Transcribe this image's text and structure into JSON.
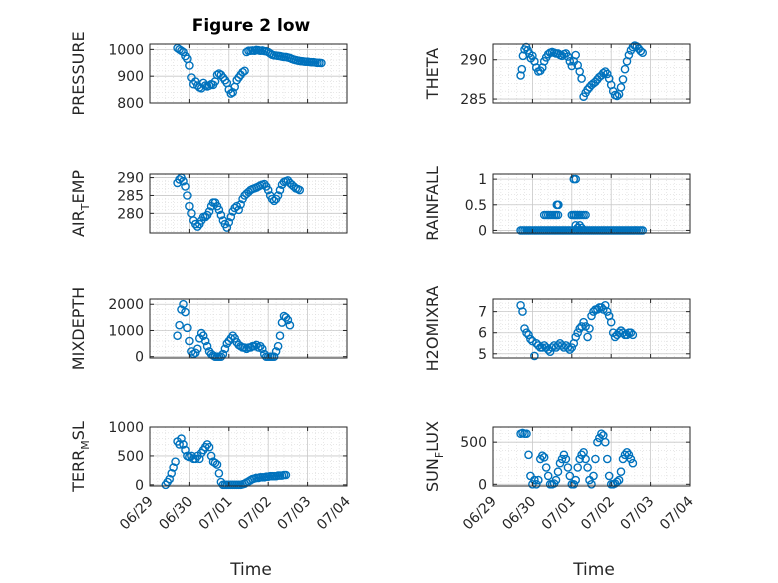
{
  "title": "Figure 2 low",
  "x_axis_label": "Time",
  "x_tick_labels": [
    "06/29",
    "06/30",
    "07/01",
    "07/02",
    "07/03",
    "07/04"
  ],
  "chart_data": [
    {
      "type": "scatter",
      "ylabel": "PRESSURE",
      "ylim": [
        800,
        1020
      ],
      "yticks": [
        800,
        900,
        1000
      ],
      "x": [
        0.7,
        0.75,
        0.8,
        0.85,
        0.9,
        0.95,
        1.0,
        1.05,
        1.1,
        1.15,
        1.2,
        1.25,
        1.3,
        1.35,
        1.4,
        1.45,
        1.5,
        1.55,
        1.6,
        1.65,
        1.7,
        1.75,
        1.8,
        1.85,
        1.9,
        1.95,
        2.0,
        2.05,
        2.1,
        2.15,
        2.2,
        2.25,
        2.3,
        2.35,
        2.4,
        2.45,
        2.5,
        2.55,
        2.6,
        2.65,
        2.7,
        2.75,
        2.8,
        2.85,
        2.9,
        2.95,
        3.0,
        3.05,
        3.1,
        3.15,
        3.2,
        3.25,
        3.3,
        3.35,
        3.4,
        3.45,
        3.5,
        3.55,
        3.6,
        3.65,
        3.7,
        3.75,
        3.8,
        3.85,
        3.9,
        3.95,
        4.0,
        4.05,
        4.1,
        4.15,
        4.2,
        4.25,
        4.3,
        4.35
      ],
      "y": [
        1005,
        1000,
        995,
        990,
        975,
        965,
        940,
        895,
        870,
        880,
        865,
        858,
        855,
        875,
        865,
        862,
        865,
        870,
        868,
        880,
        905,
        910,
        905,
        895,
        885,
        875,
        850,
        835,
        840,
        860,
        885,
        895,
        905,
        915,
        920,
        990,
        995,
        995,
        996,
        995,
        998,
        997,
        995,
        996,
        994,
        993,
        990,
        985,
        980,
        978,
        977,
        976,
        975,
        973,
        972,
        972,
        970,
        968,
        965,
        962,
        960,
        958,
        957,
        956,
        955,
        954,
        954,
        953,
        952,
        952,
        951,
        950,
        950,
        949
      ]
    },
    {
      "type": "scatter",
      "ylabel": "THETA",
      "ylim": [
        284.5,
        292
      ],
      "yticks": [
        285,
        290
      ],
      "x": [
        0.7,
        0.73,
        0.76,
        0.8,
        0.84,
        0.88,
        0.92,
        0.96,
        1.0,
        1.05,
        1.1,
        1.15,
        1.2,
        1.25,
        1.3,
        1.35,
        1.4,
        1.45,
        1.5,
        1.55,
        1.6,
        1.65,
        1.7,
        1.75,
        1.8,
        1.85,
        1.9,
        1.95,
        2.0,
        2.05,
        2.1,
        2.15,
        2.2,
        2.25,
        2.3,
        2.35,
        2.4,
        2.45,
        2.5,
        2.55,
        2.6,
        2.65,
        2.7,
        2.75,
        2.8,
        2.85,
        2.9,
        2.95,
        3.0,
        3.05,
        3.1,
        3.15,
        3.2,
        3.25,
        3.3,
        3.35,
        3.4,
        3.45,
        3.5,
        3.55,
        3.6,
        3.65,
        3.7,
        3.75,
        3.8
      ],
      "y": [
        288.0,
        288.8,
        290.5,
        291.3,
        291.6,
        291.2,
        290.8,
        290.2,
        290.5,
        289.8,
        289.0,
        288.5,
        288.6,
        289.0,
        289.8,
        290.3,
        290.7,
        290.9,
        291.0,
        290.9,
        290.8,
        290.8,
        290.6,
        290.5,
        290.7,
        290.8,
        290.4,
        289.8,
        289.2,
        289.8,
        290.6,
        289.3,
        288.5,
        287.6,
        285.3,
        285.8,
        286.2,
        286.5,
        286.8,
        287.0,
        287.2,
        287.5,
        287.8,
        288.0,
        288.3,
        288.5,
        288.2,
        287.6,
        286.8,
        286.0,
        285.5,
        285.4,
        285.6,
        286.5,
        287.5,
        288.8,
        289.8,
        290.6,
        291.2,
        291.6,
        291.8,
        291.7,
        291.4,
        291.1,
        290.9
      ]
    },
    {
      "type": "scatter",
      "ylabel": "AIR_TEMP",
      "ylim": [
        274.5,
        291
      ],
      "yticks": [
        280,
        285,
        290
      ],
      "x": [
        0.7,
        0.75,
        0.8,
        0.85,
        0.9,
        0.95,
        1.0,
        1.05,
        1.1,
        1.15,
        1.2,
        1.25,
        1.3,
        1.35,
        1.4,
        1.45,
        1.5,
        1.55,
        1.6,
        1.65,
        1.7,
        1.75,
        1.8,
        1.85,
        1.9,
        1.95,
        2.0,
        2.05,
        2.1,
        2.15,
        2.2,
        2.25,
        2.3,
        2.35,
        2.4,
        2.45,
        2.5,
        2.55,
        2.6,
        2.65,
        2.7,
        2.75,
        2.8,
        2.85,
        2.9,
        2.95,
        3.0,
        3.05,
        3.1,
        3.15,
        3.2,
        3.25,
        3.3,
        3.35,
        3.4,
        3.45,
        3.5,
        3.55,
        3.6,
        3.65,
        3.7,
        3.75,
        3.8
      ],
      "y": [
        288.5,
        289.5,
        290.0,
        289.0,
        287.5,
        285.0,
        282.0,
        280.0,
        278.0,
        277.0,
        276.3,
        277.0,
        278.0,
        279.0,
        279.0,
        279.5,
        280.5,
        282.0,
        283.0,
        283.0,
        282.0,
        281.0,
        279.5,
        278.0,
        277.0,
        276.0,
        277.5,
        279.0,
        280.5,
        281.5,
        282.0,
        281.0,
        282.5,
        284.0,
        285.0,
        285.5,
        286.0,
        286.5,
        286.8,
        287.0,
        287.2,
        287.5,
        287.8,
        288.0,
        288.2,
        287.5,
        286.5,
        285.0,
        284.0,
        283.5,
        284.0,
        285.0,
        286.5,
        288.0,
        288.8,
        289.0,
        289.2,
        288.5,
        288.0,
        287.5,
        287.0,
        286.8,
        286.5
      ]
    },
    {
      "type": "scatter",
      "ylabel": "RAINFALL",
      "ylim": [
        -0.05,
        1.1
      ],
      "yticks": [
        0,
        0.5,
        1
      ],
      "x": [
        0.7,
        0.75,
        0.8,
        0.85,
        0.9,
        0.95,
        1.0,
        1.05,
        1.1,
        1.15,
        1.2,
        1.25,
        1.3,
        1.35,
        1.4,
        1.45,
        1.5,
        1.55,
        1.6,
        1.65,
        1.7,
        1.75,
        1.8,
        1.85,
        1.9,
        1.95,
        2.0,
        2.05,
        2.1,
        2.15,
        2.2,
        2.25,
        2.3,
        2.35,
        2.4,
        2.45,
        2.5,
        2.55,
        2.6,
        2.65,
        2.7,
        2.75,
        2.8,
        2.85,
        2.9,
        2.95,
        3.0,
        3.05,
        3.1,
        3.15,
        3.2,
        3.25,
        3.3,
        3.35,
        3.4,
        3.45,
        3.5,
        3.55,
        3.6,
        3.65,
        3.7,
        3.75,
        3.8,
        1.3,
        1.35,
        1.4,
        1.45,
        1.5,
        1.55,
        1.6,
        1.65,
        2.05,
        2.1,
        2.15,
        2.2,
        2.25,
        2.3,
        2.35,
        1.62,
        1.64,
        1.66,
        2.0,
        2.05,
        2.1,
        2.15,
        2.05,
        2.1,
        2.1,
        2.15,
        2.2,
        2.25
      ],
      "y": [
        0,
        0,
        0,
        0,
        0,
        0,
        0,
        0,
        0,
        0,
        0,
        0,
        0,
        0,
        0,
        0,
        0,
        0,
        0,
        0,
        0,
        0,
        0,
        0,
        0,
        0,
        0,
        0,
        0,
        0,
        0,
        0,
        0,
        0,
        0,
        0,
        0,
        0,
        0,
        0,
        0,
        0,
        0,
        0,
        0,
        0,
        0,
        0,
        0,
        0,
        0,
        0,
        0,
        0,
        0,
        0,
        0,
        0,
        0,
        0,
        0,
        0,
        0,
        0.3,
        0.3,
        0.3,
        0.3,
        0.3,
        0.3,
        0.3,
        0.3,
        0.3,
        0.3,
        0.3,
        0.3,
        0.3,
        0.3,
        0.3,
        0.5,
        0.5,
        0.5,
        0.3,
        0.3,
        0.3,
        0.3,
        1.0,
        1.0,
        0.1,
        0.05,
        0.1,
        0.05
      ]
    },
    {
      "type": "scatter",
      "ylabel": "MIXDEPTH",
      "ylim": [
        -50,
        2200
      ],
      "yticks": [
        0,
        1000,
        2000
      ],
      "x": [
        0.7,
        0.75,
        0.8,
        0.85,
        0.9,
        0.95,
        1.0,
        1.05,
        1.1,
        1.15,
        1.2,
        1.25,
        1.3,
        1.35,
        1.4,
        1.45,
        1.5,
        1.55,
        1.6,
        1.65,
        1.7,
        1.75,
        1.8,
        1.85,
        1.9,
        1.95,
        2.0,
        2.05,
        2.1,
        2.15,
        2.2,
        2.25,
        2.3,
        2.35,
        2.4,
        2.45,
        2.5,
        2.55,
        2.6,
        2.65,
        2.7,
        2.75,
        2.8,
        2.85,
        2.9,
        2.95,
        3.0,
        3.05,
        3.1,
        3.15,
        3.2,
        3.25,
        3.3,
        3.35,
        3.4,
        3.45,
        3.5,
        3.55
      ],
      "y": [
        800,
        1200,
        1800,
        2000,
        1700,
        1100,
        600,
        200,
        100,
        150,
        300,
        700,
        900,
        800,
        600,
        400,
        200,
        100,
        50,
        0,
        0,
        0,
        0,
        100,
        300,
        500,
        600,
        700,
        800,
        700,
        550,
        450,
        400,
        350,
        350,
        300,
        350,
        350,
        400,
        400,
        450,
        350,
        400,
        300,
        100,
        0,
        0,
        0,
        0,
        0,
        200,
        400,
        800,
        1300,
        1550,
        1500,
        1400,
        1200
      ]
    },
    {
      "type": "scatter",
      "ylabel": "H2OMIXRA",
      "ylim": [
        4.8,
        7.6
      ],
      "yticks": [
        5,
        6,
        7
      ],
      "x": [
        0.7,
        0.75,
        0.8,
        0.85,
        0.9,
        0.95,
        1.0,
        1.05,
        1.1,
        1.15,
        1.2,
        1.25,
        1.3,
        1.35,
        1.4,
        1.45,
        1.5,
        1.55,
        1.6,
        1.65,
        1.7,
        1.75,
        1.8,
        1.85,
        1.9,
        1.95,
        2.0,
        2.05,
        2.1,
        2.15,
        2.2,
        2.25,
        2.3,
        2.35,
        2.4,
        2.45,
        2.5,
        2.55,
        2.6,
        2.65,
        2.7,
        2.75,
        2.8,
        2.85,
        2.9,
        2.95,
        3.0,
        3.05,
        3.1,
        3.15,
        3.2,
        3.25,
        3.3,
        3.35,
        3.4,
        3.45,
        3.5,
        3.55
      ],
      "y": [
        7.3,
        7.0,
        6.2,
        6.0,
        5.9,
        5.7,
        5.6,
        4.9,
        5.5,
        5.4,
        5.3,
        5.3,
        5.4,
        5.3,
        5.2,
        5.1,
        5.3,
        5.4,
        5.3,
        5.4,
        5.5,
        5.4,
        5.3,
        5.4,
        5.3,
        5.2,
        5.3,
        5.5,
        5.8,
        6.0,
        6.2,
        6.3,
        6.5,
        6.3,
        5.8,
        6.2,
        6.8,
        7.0,
        7.1,
        7.1,
        7.2,
        7.2,
        7.1,
        7.3,
        7.0,
        6.8,
        6.5,
        6.0,
        5.8,
        5.9,
        6.0,
        6.1,
        6.0,
        5.9,
        5.9,
        6.0,
        6.0,
        5.9
      ]
    },
    {
      "type": "scatter",
      "ylabel": "TERR_MSL",
      "ylim": [
        -20,
        1000
      ],
      "yticks": [
        0,
        500,
        1000
      ],
      "x": [
        0.4,
        0.45,
        0.5,
        0.55,
        0.6,
        0.65,
        0.7,
        0.75,
        0.8,
        0.85,
        0.9,
        0.95,
        1.0,
        1.05,
        1.1,
        1.15,
        1.2,
        1.25,
        1.3,
        1.35,
        1.4,
        1.45,
        1.5,
        1.55,
        1.6,
        1.65,
        1.7,
        1.75,
        1.8,
        1.85,
        1.9,
        1.95,
        2.0,
        2.05,
        2.1,
        2.15,
        2.2,
        2.25,
        2.3,
        2.35,
        2.4,
        2.45,
        2.5,
        2.55,
        2.6,
        2.65,
        2.7,
        2.75,
        2.8,
        2.85,
        2.9,
        2.95,
        3.0,
        3.05,
        3.1,
        3.15,
        3.2,
        3.25,
        3.3,
        3.35,
        3.4,
        3.45
      ],
      "y": [
        0,
        50,
        100,
        200,
        300,
        400,
        750,
        700,
        800,
        700,
        600,
        500,
        480,
        500,
        450,
        450,
        500,
        450,
        550,
        600,
        650,
        700,
        650,
        500,
        400,
        380,
        350,
        200,
        50,
        0,
        0,
        0,
        0,
        0,
        0,
        0,
        0,
        0,
        0,
        10,
        20,
        40,
        60,
        80,
        100,
        110,
        120,
        120,
        130,
        130,
        130,
        140,
        140,
        150,
        150,
        150,
        150,
        160,
        160,
        160,
        170,
        170
      ]
    },
    {
      "type": "scatter",
      "ylabel": "SUN_FLUX",
      "ylim": [
        -20,
        680
      ],
      "yticks": [
        0,
        500
      ],
      "x": [
        0.7,
        0.75,
        0.8,
        0.85,
        0.9,
        0.95,
        1.0,
        1.05,
        1.1,
        1.15,
        1.2,
        1.25,
        1.3,
        1.35,
        1.4,
        1.45,
        1.5,
        1.55,
        1.6,
        1.65,
        1.7,
        1.75,
        1.8,
        1.85,
        1.9,
        1.95,
        2.0,
        2.05,
        2.1,
        2.15,
        2.2,
        2.25,
        2.3,
        2.35,
        2.4,
        2.45,
        2.5,
        2.55,
        2.6,
        2.65,
        2.7,
        2.75,
        2.8,
        2.85,
        2.9,
        2.95,
        3.0,
        3.05,
        3.1,
        3.15,
        3.2,
        3.25,
        3.3,
        3.35,
        3.4,
        3.45,
        3.5,
        3.55
      ],
      "y": [
        600,
        610,
        600,
        600,
        350,
        100,
        0,
        50,
        0,
        50,
        300,
        340,
        320,
        200,
        100,
        0,
        0,
        10,
        50,
        150,
        250,
        300,
        350,
        300,
        200,
        100,
        0,
        0,
        50,
        200,
        300,
        350,
        380,
        300,
        200,
        50,
        0,
        100,
        300,
        500,
        550,
        600,
        580,
        500,
        300,
        100,
        0,
        0,
        10,
        30,
        50,
        150,
        300,
        350,
        380,
        350,
        300,
        250
      ]
    }
  ]
}
